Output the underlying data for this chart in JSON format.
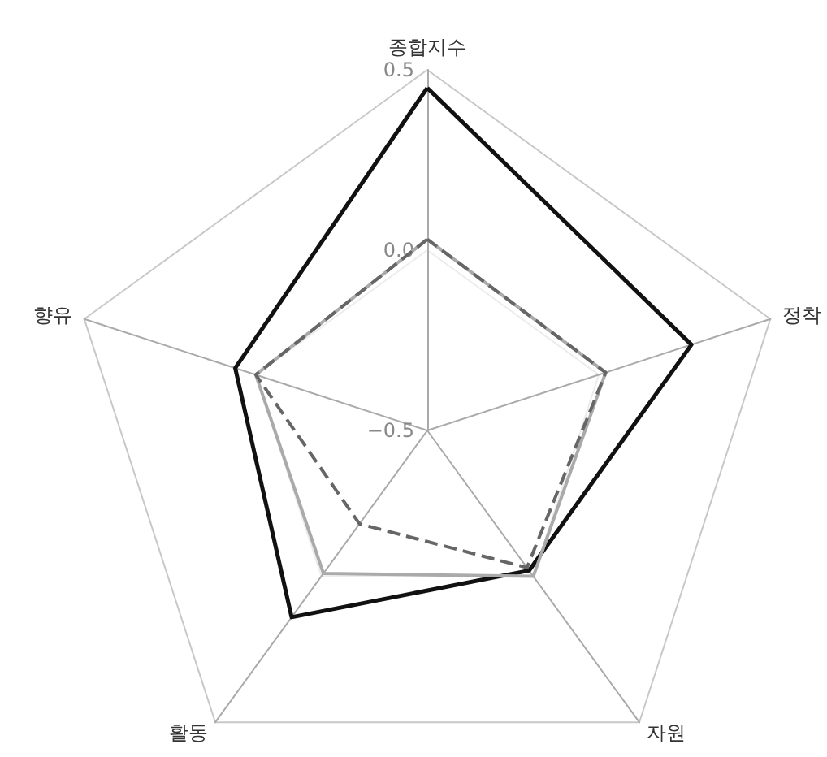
{
  "chart_data": {
    "type": "radar",
    "categories": [
      "종합지수",
      "정착",
      "자원",
      "활동",
      "향유"
    ],
    "ylim": [
      -0.5,
      0.5
    ],
    "yticks": [
      {
        "value": -0.5,
        "label": "−0.5"
      },
      {
        "value": 0,
        "label": "0.0"
      },
      {
        "value": 0.5,
        "label": "0.5"
      }
    ],
    "grid": true,
    "marker": "none",
    "line_style": "solid",
    "series": [
      {
        "color": "#111111",
        "values": [
          0.45,
          0.27,
          -0.02,
          0.14,
          0.06
        ]
      },
      {
        "color": "#aaaaaa",
        "values": [
          0.03,
          0.02,
          0.0,
          -0.01,
          0.0
        ]
      },
      {
        "color": "#666666",
        "line_style": "dashed",
        "values": [
          0.03,
          0.02,
          -0.03,
          -0.18,
          0.0
        ]
      }
    ]
  }
}
